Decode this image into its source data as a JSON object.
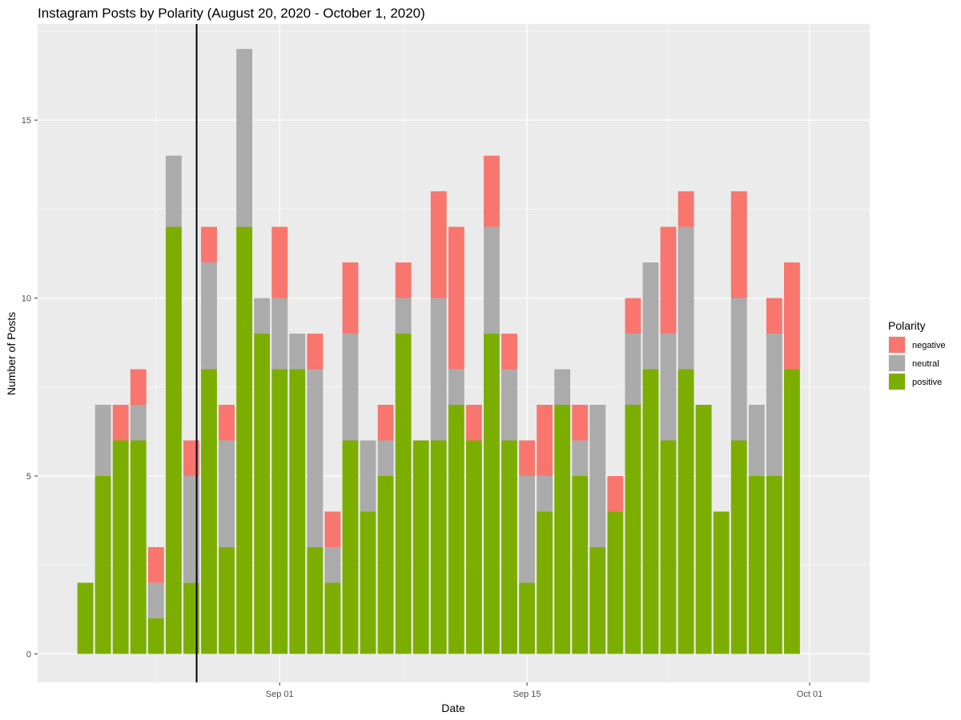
{
  "chart_data": {
    "type": "bar",
    "stacked": true,
    "title": "Instagram Posts by Polarity (August 20, 2020 - October 1, 2020)",
    "xlabel": "Date",
    "ylabel": "Number of Posts",
    "ylim": [
      -0.8,
      17.7
    ],
    "yticks": [
      0,
      5,
      10,
      15
    ],
    "xtick_labels": [
      {
        "label": "Sep 01",
        "index": 11
      },
      {
        "label": "Sep 15",
        "index": 25
      },
      {
        "label": "Oct 01",
        "index": 41
      }
    ],
    "xlim_index": [
      -2.7,
      44.4
    ],
    "reference_line_index": 6.3,
    "grid": true,
    "legend": {
      "title": "Polarity",
      "position": "right",
      "entries": [
        {
          "name": "negative",
          "color": "#F8766D"
        },
        {
          "name": "neutral",
          "color": "#ABABAB"
        },
        {
          "name": "positive",
          "color": "#7CAE00"
        }
      ]
    },
    "series": [
      {
        "name": "positive",
        "color": "#7CAE00",
        "values": [
          2,
          5,
          6,
          6,
          1,
          12,
          2,
          8,
          3,
          12,
          9,
          8,
          8,
          3,
          2,
          6,
          4,
          5,
          9,
          6,
          6,
          7,
          6,
          9,
          6,
          2,
          4,
          7,
          5,
          3,
          4,
          7,
          8,
          6,
          8,
          7,
          4,
          6,
          5,
          5,
          8
        ]
      },
      {
        "name": "neutral",
        "color": "#ABABAB",
        "values": [
          0,
          2,
          0,
          1,
          1,
          2,
          3,
          3,
          3,
          5,
          1,
          2,
          1,
          5,
          1,
          3,
          2,
          1,
          1,
          0,
          4,
          1,
          0,
          3,
          2,
          3,
          1,
          1,
          1,
          4,
          0,
          2,
          3,
          3,
          4,
          0,
          0,
          4,
          2,
          4,
          0
        ]
      },
      {
        "name": "negative",
        "color": "#F8766D",
        "values": [
          0,
          0,
          1,
          1,
          1,
          0,
          1,
          1,
          1,
          0,
          0,
          2,
          0,
          1,
          1,
          2,
          0,
          1,
          1,
          0,
          3,
          4,
          1,
          2,
          1,
          1,
          2,
          0,
          1,
          0,
          1,
          1,
          0,
          3,
          1,
          0,
          0,
          3,
          0,
          1,
          3
        ]
      }
    ]
  }
}
